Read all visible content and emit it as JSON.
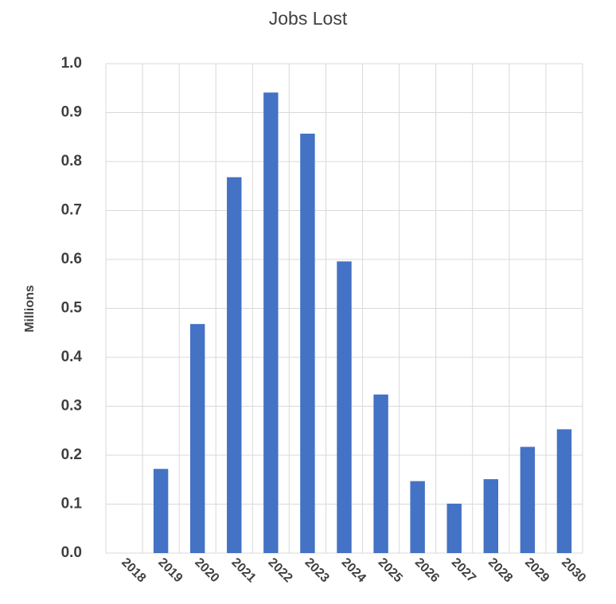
{
  "chart_data": {
    "type": "bar",
    "title": "Jobs Lost",
    "y_label": "Millions",
    "categories": [
      "2018",
      "2019",
      "2020",
      "2021",
      "2022",
      "2023",
      "2024",
      "2025",
      "2026",
      "2027",
      "2028",
      "2029",
      "2030"
    ],
    "values": [
      0,
      0.172,
      0.468,
      0.768,
      0.941,
      0.857,
      0.596,
      0.324,
      0.147,
      0.101,
      0.151,
      0.217,
      0.253
    ],
    "color": "#4472c4",
    "ylim": [
      0,
      1
    ],
    "yticks": [
      {
        "value": 0,
        "label": "0.0"
      },
      0.1,
      0.2,
      0.3,
      0.4,
      0.5,
      0.6,
      0.7,
      0.8,
      0.9,
      {
        "value": 1,
        "label": "1.0"
      }
    ],
    "grid": true
  }
}
